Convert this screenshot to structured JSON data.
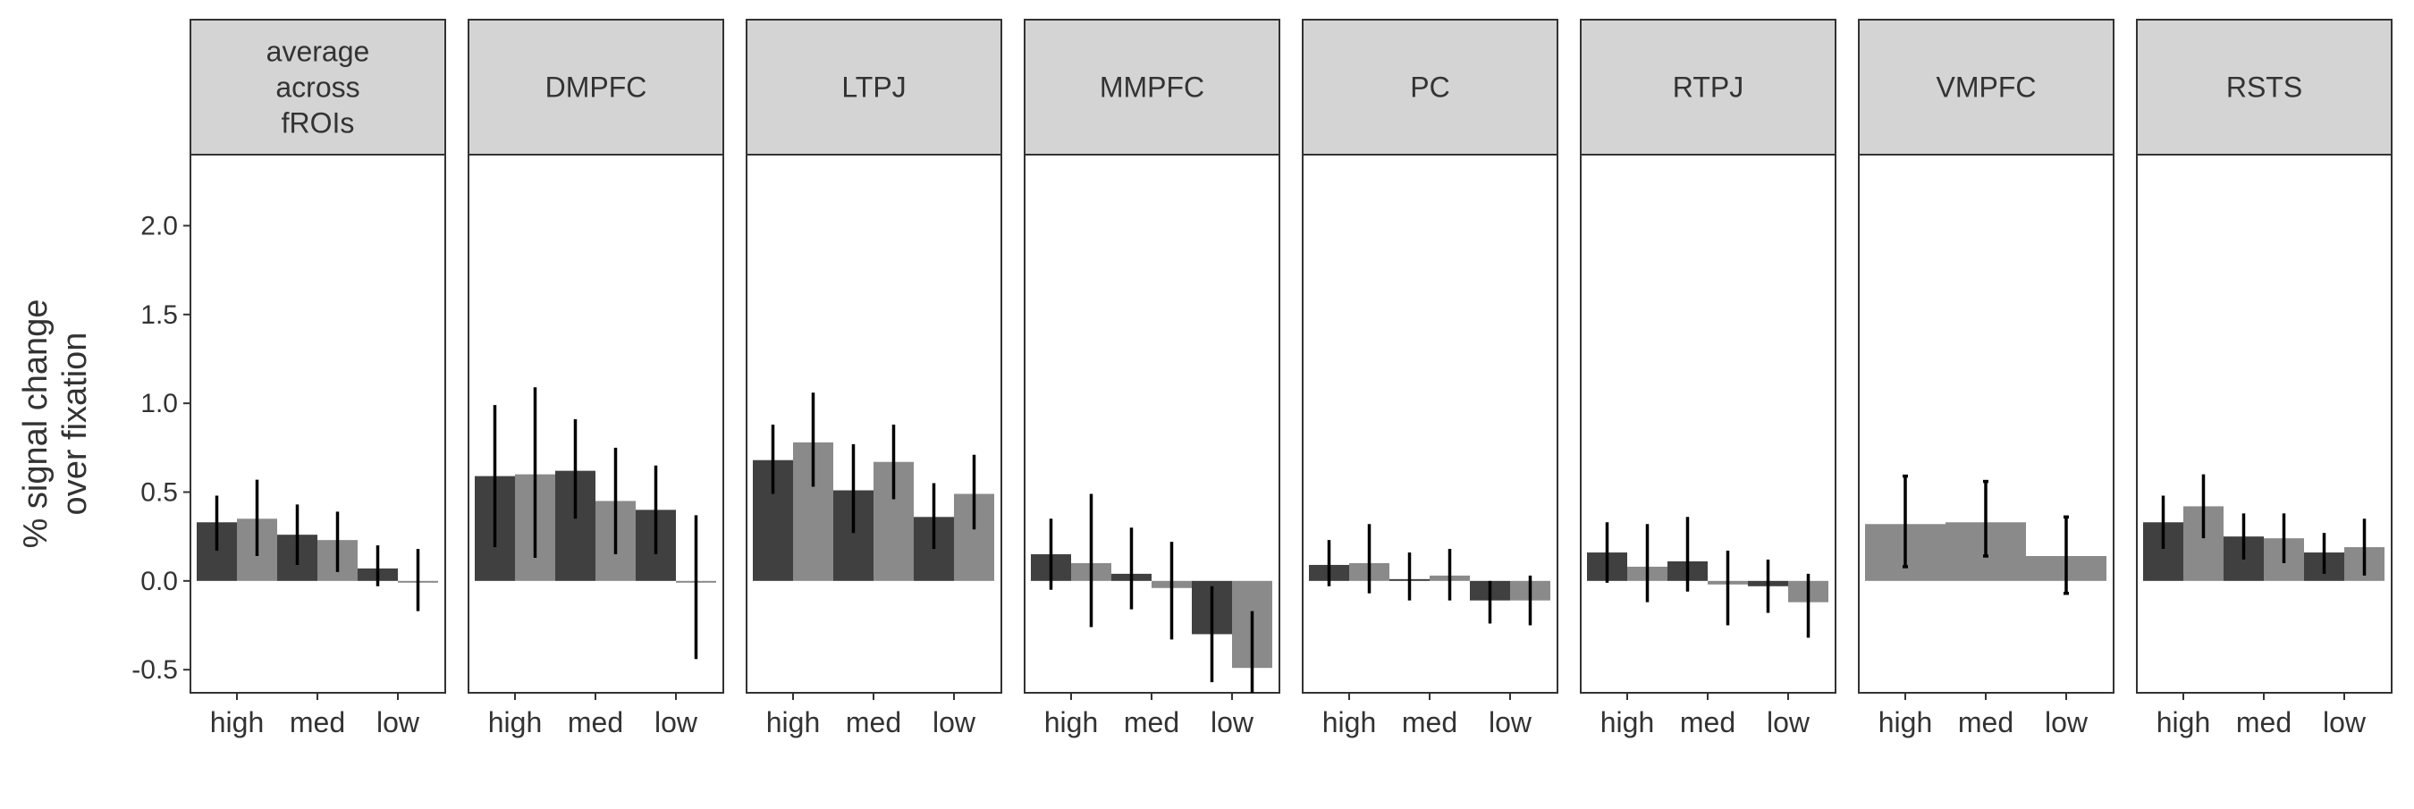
{
  "chart_data": {
    "type": "bar",
    "ylabel": [
      "% signal change",
      "over fixation"
    ],
    "ylim": [
      -0.63,
      2.4
    ],
    "yticks": [
      2.0,
      1.5,
      1.0,
      0.5,
      0.0,
      -0.5
    ],
    "ytick_labels": [
      "2.0",
      "1.5",
      "1.0",
      "0.5",
      "0.0",
      "-0.5"
    ],
    "categories": [
      "high",
      "med",
      "low"
    ],
    "grid": false,
    "colors": {
      "series1": "#404040",
      "series2": "#8a8a8a",
      "strip": "#d4d4d4",
      "error": "#000000",
      "axis": "#333333"
    },
    "panels": [
      {
        "title": [
          "average",
          "across",
          "fROIs"
        ],
        "series": [
          {
            "values": [
              0.33,
              0.26,
              0.07
            ],
            "err_low": [
              0.17,
              0.09,
              -0.03
            ],
            "err_high": [
              0.48,
              0.43,
              0.2
            ]
          },
          {
            "values": [
              0.35,
              0.23,
              0.0
            ],
            "err_low": [
              0.14,
              0.05,
              -0.17
            ],
            "err_high": [
              0.57,
              0.39,
              0.18
            ]
          }
        ]
      },
      {
        "title": [
          "DMPFC"
        ],
        "series": [
          {
            "values": [
              0.59,
              0.62,
              0.4
            ],
            "err_low": [
              0.19,
              0.35,
              0.15
            ],
            "err_high": [
              0.99,
              0.91,
              0.65
            ]
          },
          {
            "values": [
              0.6,
              0.45,
              0.0
            ],
            "err_low": [
              0.13,
              0.15,
              -0.44
            ],
            "err_high": [
              1.09,
              0.75,
              0.37
            ]
          }
        ]
      },
      {
        "title": [
          "LTPJ"
        ],
        "series": [
          {
            "values": [
              0.68,
              0.51,
              0.36
            ],
            "err_low": [
              0.49,
              0.27,
              0.18
            ],
            "err_high": [
              0.88,
              0.77,
              0.55
            ]
          },
          {
            "values": [
              0.78,
              0.67,
              0.49
            ],
            "err_low": [
              0.53,
              0.46,
              0.29
            ],
            "err_high": [
              1.06,
              0.88,
              0.71
            ]
          }
        ]
      },
      {
        "title": [
          "MMPFC"
        ],
        "series": [
          {
            "values": [
              0.15,
              0.04,
              -0.3
            ],
            "err_low": [
              -0.05,
              -0.16,
              -0.57
            ],
            "err_high": [
              0.35,
              0.3,
              -0.03
            ]
          },
          {
            "values": [
              0.1,
              -0.04,
              -0.49
            ],
            "err_low": [
              -0.26,
              -0.33,
              -0.65
            ],
            "err_high": [
              0.49,
              0.22,
              -0.17
            ]
          }
        ]
      },
      {
        "title": [
          "PC"
        ],
        "series": [
          {
            "values": [
              0.09,
              0.01,
              -0.11
            ],
            "err_low": [
              -0.03,
              -0.11,
              -0.24
            ],
            "err_high": [
              0.23,
              0.16,
              0.0
            ]
          },
          {
            "values": [
              0.1,
              0.03,
              -0.11
            ],
            "err_low": [
              -0.07,
              -0.11,
              -0.25
            ],
            "err_high": [
              0.32,
              0.18,
              0.03
            ]
          }
        ]
      },
      {
        "title": [
          "RTPJ"
        ],
        "series": [
          {
            "values": [
              0.16,
              0.11,
              -0.03
            ],
            "err_low": [
              -0.01,
              -0.06,
              -0.18
            ],
            "err_high": [
              0.33,
              0.36,
              0.12
            ]
          },
          {
            "values": [
              0.08,
              -0.02,
              -0.12
            ],
            "err_low": [
              -0.12,
              -0.25,
              -0.32
            ],
            "err_high": [
              0.32,
              0.17,
              0.04
            ]
          }
        ]
      },
      {
        "title": [
          "VMPFC"
        ],
        "series": [
          {
            "values": [
              0.32,
              0.33,
              0.14
            ],
            "err_low": [
              0.08,
              0.14,
              -0.07
            ],
            "err_high": [
              0.59,
              0.56,
              0.36
            ]
          }
        ],
        "single": true
      },
      {
        "title": [
          "RSTS"
        ],
        "series": [
          {
            "values": [
              0.33,
              0.25,
              0.16
            ],
            "err_low": [
              0.18,
              0.12,
              0.04
            ],
            "err_high": [
              0.48,
              0.38,
              0.27
            ]
          },
          {
            "values": [
              0.42,
              0.24,
              0.19
            ],
            "err_low": [
              0.24,
              0.1,
              0.03
            ],
            "err_high": [
              0.6,
              0.38,
              0.35
            ]
          }
        ]
      }
    ]
  }
}
